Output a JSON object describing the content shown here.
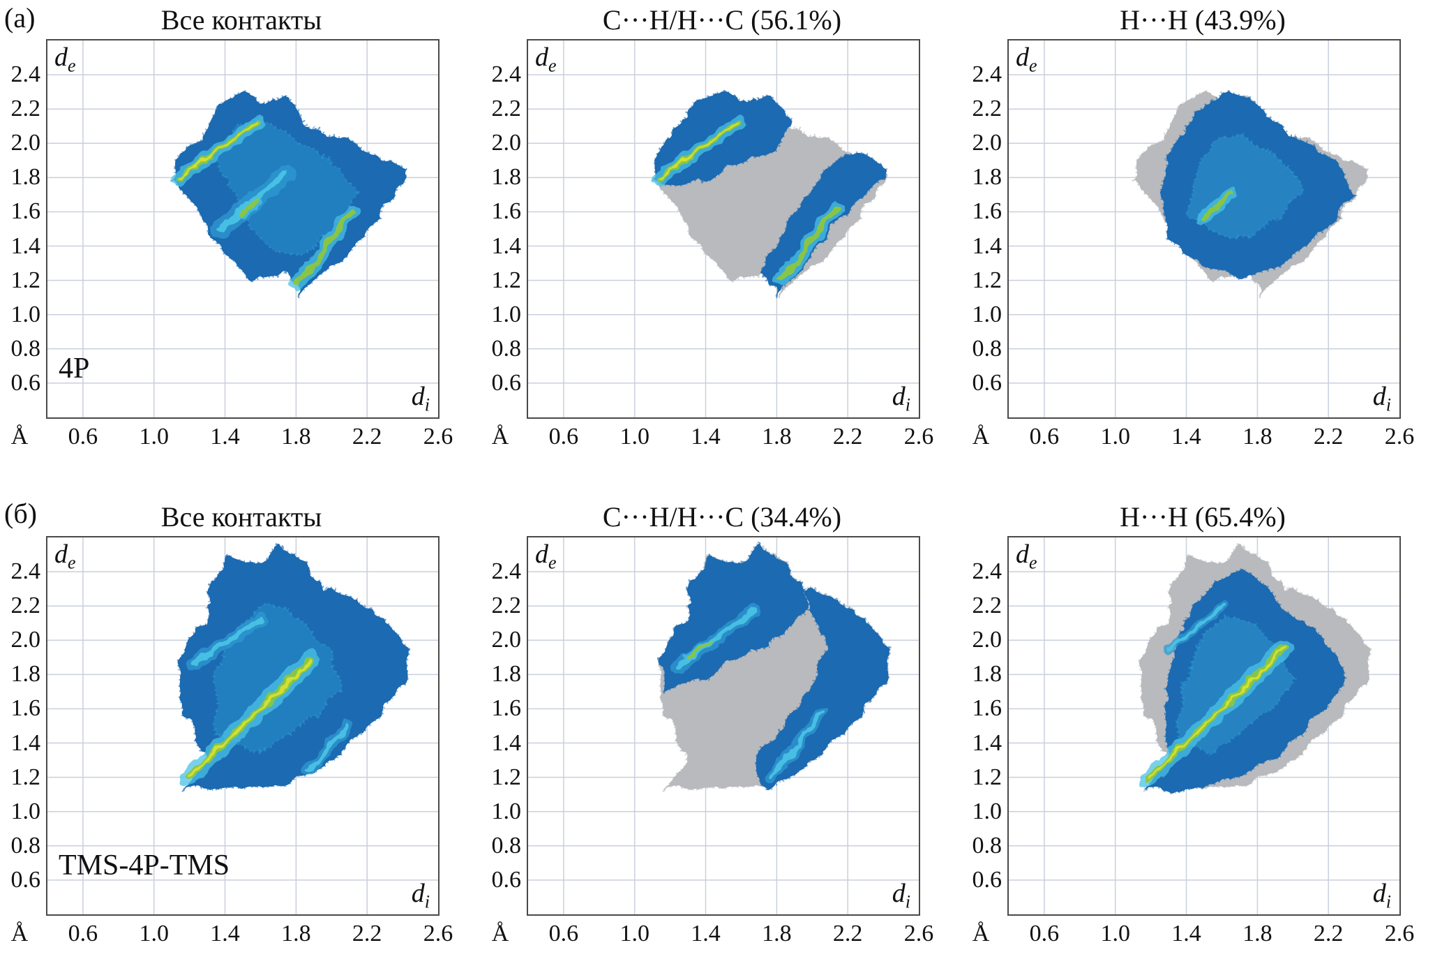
{
  "figure": {
    "row_labels": [
      "(а)",
      "(б)"
    ],
    "colors": {
      "grid": "#c9cfdd",
      "frame": "#4a4a4a",
      "gray": "#b9babd",
      "blue": "#1a6ab1",
      "blue_light": "#2f9ad1",
      "cyan": "#49c2e5",
      "green": "#8cc63e",
      "yellow": "#d7e02f"
    },
    "axis": {
      "unit": "Å",
      "xlabel": "d",
      "xlabel_sub": "i",
      "ylabel": "d",
      "ylabel_sub": "e"
    }
  },
  "shapes": {
    "outline_a": [
      [
        1.28,
        2.02
      ],
      [
        1.35,
        2.22
      ],
      [
        1.5,
        2.3
      ],
      [
        1.62,
        2.22
      ],
      [
        1.75,
        2.28
      ],
      [
        1.85,
        2.1
      ],
      [
        2.0,
        2.05
      ],
      [
        2.1,
        2.02
      ],
      [
        2.2,
        1.95
      ],
      [
        2.42,
        1.85
      ],
      [
        2.35,
        1.68
      ],
      [
        2.2,
        1.5
      ],
      [
        2.1,
        1.35
      ],
      [
        1.95,
        1.25
      ],
      [
        1.82,
        1.12
      ],
      [
        1.75,
        1.25
      ],
      [
        1.55,
        1.2
      ],
      [
        1.45,
        1.3
      ],
      [
        1.35,
        1.42
      ],
      [
        1.28,
        1.55
      ],
      [
        1.18,
        1.7
      ],
      [
        1.1,
        1.78
      ],
      [
        1.15,
        1.95
      ],
      [
        1.22,
        2.0
      ]
    ],
    "inner_a": [
      [
        1.35,
        1.9
      ],
      [
        1.45,
        2.1
      ],
      [
        1.6,
        2.15
      ],
      [
        1.75,
        2.05
      ],
      [
        1.9,
        1.95
      ],
      [
        2.05,
        1.85
      ],
      [
        2.15,
        1.7
      ],
      [
        2.0,
        1.5
      ],
      [
        1.85,
        1.35
      ],
      [
        1.7,
        1.35
      ],
      [
        1.55,
        1.5
      ],
      [
        1.45,
        1.7
      ]
    ],
    "wing_a_upper": [
      [
        1.1,
        1.78
      ],
      [
        1.14,
        1.98
      ],
      [
        1.25,
        2.1
      ],
      [
        1.33,
        2.25
      ],
      [
        1.5,
        2.3
      ],
      [
        1.63,
        2.23
      ],
      [
        1.76,
        2.28
      ],
      [
        1.88,
        2.12
      ],
      [
        1.8,
        1.98
      ],
      [
        1.6,
        1.88
      ],
      [
        1.42,
        1.8
      ],
      [
        1.25,
        1.74
      ]
    ],
    "band_a_lower": [
      [
        1.8,
        1.12
      ],
      [
        1.92,
        1.25
      ],
      [
        2.05,
        1.42
      ],
      [
        2.18,
        1.58
      ],
      [
        2.32,
        1.72
      ],
      [
        2.42,
        1.84
      ],
      [
        2.3,
        1.95
      ],
      [
        2.15,
        1.92
      ],
      [
        2.02,
        1.78
      ],
      [
        1.9,
        1.6
      ],
      [
        1.8,
        1.42
      ],
      [
        1.72,
        1.25
      ]
    ],
    "blob_a_hh": [
      [
        1.3,
        1.45
      ],
      [
        1.26,
        1.7
      ],
      [
        1.3,
        1.95
      ],
      [
        1.4,
        2.1
      ],
      [
        1.5,
        2.22
      ],
      [
        1.62,
        2.3
      ],
      [
        1.76,
        2.26
      ],
      [
        1.88,
        2.12
      ],
      [
        2.0,
        2.05
      ],
      [
        2.12,
        1.98
      ],
      [
        2.25,
        1.88
      ],
      [
        2.35,
        1.7
      ],
      [
        2.2,
        1.52
      ],
      [
        2.05,
        1.38
      ],
      [
        1.9,
        1.28
      ],
      [
        1.72,
        1.22
      ],
      [
        1.52,
        1.28
      ],
      [
        1.4,
        1.35
      ]
    ],
    "inner_a_hh": [
      [
        1.4,
        1.6
      ],
      [
        1.45,
        1.85
      ],
      [
        1.55,
        2.0
      ],
      [
        1.7,
        2.05
      ],
      [
        1.85,
        1.95
      ],
      [
        2.0,
        1.85
      ],
      [
        2.05,
        1.7
      ],
      [
        1.9,
        1.55
      ],
      [
        1.75,
        1.45
      ],
      [
        1.55,
        1.48
      ]
    ],
    "outline_b": [
      [
        1.17,
        1.13
      ],
      [
        1.3,
        1.28
      ],
      [
        1.24,
        1.45
      ],
      [
        1.16,
        1.6
      ],
      [
        1.13,
        1.82
      ],
      [
        1.2,
        2.02
      ],
      [
        1.3,
        2.1
      ],
      [
        1.3,
        2.28
      ],
      [
        1.42,
        2.48
      ],
      [
        1.58,
        2.44
      ],
      [
        1.7,
        2.55
      ],
      [
        1.84,
        2.46
      ],
      [
        1.95,
        2.3
      ],
      [
        2.1,
        2.26
      ],
      [
        2.28,
        2.12
      ],
      [
        2.44,
        1.96
      ],
      [
        2.42,
        1.78
      ],
      [
        2.3,
        1.6
      ],
      [
        2.16,
        1.46
      ],
      [
        2.0,
        1.3
      ],
      [
        1.84,
        1.2
      ],
      [
        1.66,
        1.13
      ],
      [
        1.45,
        1.15
      ]
    ],
    "inner_b": [
      [
        1.35,
        1.45
      ],
      [
        1.35,
        1.8
      ],
      [
        1.45,
        2.05
      ],
      [
        1.6,
        2.2
      ],
      [
        1.75,
        2.2
      ],
      [
        1.9,
        2.05
      ],
      [
        2.0,
        1.9
      ],
      [
        2.05,
        1.7
      ],
      [
        1.9,
        1.55
      ],
      [
        1.75,
        1.45
      ],
      [
        1.6,
        1.35
      ]
    ],
    "wing_b_upper": [
      [
        1.17,
        1.7
      ],
      [
        1.15,
        1.9
      ],
      [
        1.22,
        2.05
      ],
      [
        1.3,
        2.12
      ],
      [
        1.3,
        2.3
      ],
      [
        1.43,
        2.48
      ],
      [
        1.58,
        2.44
      ],
      [
        1.7,
        2.55
      ],
      [
        1.84,
        2.45
      ],
      [
        1.95,
        2.3
      ],
      [
        1.98,
        2.18
      ],
      [
        1.85,
        2.05
      ],
      [
        1.7,
        1.95
      ],
      [
        1.5,
        1.85
      ],
      [
        1.35,
        1.76
      ]
    ],
    "arc_b_right": [
      [
        1.95,
        2.3
      ],
      [
        2.1,
        2.26
      ],
      [
        2.28,
        2.12
      ],
      [
        2.44,
        1.96
      ],
      [
        2.42,
        1.78
      ],
      [
        2.3,
        1.6
      ],
      [
        2.16,
        1.45
      ],
      [
        2.0,
        1.3
      ],
      [
        1.85,
        1.18
      ],
      [
        1.73,
        1.12
      ],
      [
        1.68,
        1.3
      ],
      [
        1.8,
        1.45
      ],
      [
        1.92,
        1.62
      ],
      [
        2.02,
        1.8
      ],
      [
        2.08,
        2.0
      ],
      [
        2.0,
        2.16
      ]
    ],
    "blob_b_hh": [
      [
        1.17,
        1.13
      ],
      [
        1.3,
        1.3
      ],
      [
        1.28,
        1.55
      ],
      [
        1.3,
        1.8
      ],
      [
        1.36,
        2.05
      ],
      [
        1.45,
        2.2
      ],
      [
        1.58,
        2.35
      ],
      [
        1.72,
        2.42
      ],
      [
        1.85,
        2.32
      ],
      [
        1.95,
        2.18
      ],
      [
        2.1,
        2.08
      ],
      [
        2.22,
        1.95
      ],
      [
        2.3,
        1.78
      ],
      [
        2.18,
        1.6
      ],
      [
        2.05,
        1.45
      ],
      [
        1.9,
        1.33
      ],
      [
        1.72,
        1.22
      ],
      [
        1.5,
        1.15
      ],
      [
        1.32,
        1.12
      ]
    ],
    "inner_b_hh": [
      [
        1.35,
        1.4
      ],
      [
        1.38,
        1.75
      ],
      [
        1.48,
        2.0
      ],
      [
        1.62,
        2.15
      ],
      [
        1.78,
        2.1
      ],
      [
        1.92,
        1.95
      ],
      [
        2.0,
        1.78
      ],
      [
        1.88,
        1.6
      ],
      [
        1.72,
        1.48
      ],
      [
        1.55,
        1.35
      ]
    ]
  },
  "chart_data": [
    {
      "type": "heatmap",
      "subtype": "hirshfeld-2d-fingerprint",
      "row": "(а)",
      "title": "Все контакты",
      "contact": "все контакты",
      "percent": null,
      "corner_label": "4P",
      "xlabel": "di",
      "ylabel": "de",
      "unit": "Å",
      "xlim": [
        0.4,
        2.6
      ],
      "ylim": [
        0.4,
        2.6
      ],
      "x_ticks": [
        "0.6",
        "1.0",
        "1.4",
        "1.8",
        "2.2",
        "2.6"
      ],
      "y_ticks": [
        "2.4",
        "2.2",
        "2.0",
        "1.8",
        "1.6",
        "1.4",
        "1.2",
        "1.0",
        "0.8",
        "0.6"
      ],
      "layers": [
        {
          "kind": "poly",
          "color": "blue",
          "pts_ref": "outline_a"
        },
        {
          "kind": "poly",
          "color": "blue_light",
          "opacity": 0.45,
          "pts_ref": "inner_a"
        },
        {
          "kind": "streak",
          "halo": "blue_light",
          "halo_w": 26,
          "core": "cyan",
          "core_w": 9,
          "from": [
            1.38,
            1.5
          ],
          "to": [
            1.74,
            1.82
          ]
        },
        {
          "kind": "streak",
          "halo": "cyan",
          "halo_w": 20,
          "core": "green",
          "core_w": 8,
          "core2": "yellow",
          "core2_w": 3,
          "from": [
            1.13,
            1.79
          ],
          "to": [
            1.58,
            2.12
          ]
        },
        {
          "kind": "streak",
          "halo": "cyan",
          "halo_w": 20,
          "core": "green",
          "core_w": 8,
          "from": [
            1.8,
            1.17
          ],
          "to": [
            2.12,
            1.6
          ]
        },
        {
          "kind": "streak",
          "halo": "cyan",
          "halo_w": 12,
          "core": "green",
          "core_w": 6,
          "from": [
            1.49,
            1.58
          ],
          "to": [
            1.58,
            1.66
          ]
        }
      ]
    },
    {
      "type": "heatmap",
      "subtype": "hirshfeld-2d-fingerprint",
      "row": "(а)",
      "title": "C···H/H···C (56.1%)",
      "contact": "C···H/H···C",
      "percent": 56.1,
      "corner_label": "",
      "xlabel": "di",
      "ylabel": "de",
      "unit": "Å",
      "xlim": [
        0.4,
        2.6
      ],
      "ylim": [
        0.4,
        2.6
      ],
      "x_ticks": [
        "0.6",
        "1.0",
        "1.4",
        "1.8",
        "2.2",
        "2.6"
      ],
      "y_ticks": [
        "2.4",
        "2.2",
        "2.0",
        "1.8",
        "1.6",
        "1.4",
        "1.2",
        "1.0",
        "0.8",
        "0.6"
      ],
      "layers": [
        {
          "kind": "poly",
          "color": "gray",
          "pts_ref": "outline_a"
        },
        {
          "kind": "poly",
          "color": "blue",
          "pts_ref": "wing_a_upper"
        },
        {
          "kind": "streak",
          "halo": "cyan",
          "halo_w": 20,
          "core": "green",
          "core_w": 8,
          "core2": "yellow",
          "core2_w": 3,
          "from": [
            1.13,
            1.79
          ],
          "to": [
            1.58,
            2.12
          ]
        },
        {
          "kind": "poly",
          "color": "blue",
          "pts_ref": "band_a_lower"
        },
        {
          "kind": "streak",
          "halo": "cyan",
          "halo_w": 20,
          "core": "green",
          "core_w": 8,
          "from": [
            1.82,
            1.2
          ],
          "to": [
            2.14,
            1.62
          ]
        }
      ]
    },
    {
      "type": "heatmap",
      "subtype": "hirshfeld-2d-fingerprint",
      "row": "(а)",
      "title": "H···H (43.9%)",
      "contact": "H···H",
      "percent": 43.9,
      "corner_label": "",
      "xlabel": "di",
      "ylabel": "de",
      "unit": "Å",
      "xlim": [
        0.4,
        2.6
      ],
      "ylim": [
        0.4,
        2.6
      ],
      "x_ticks": [
        "0.6",
        "1.0",
        "1.4",
        "1.8",
        "2.2",
        "2.6"
      ],
      "y_ticks": [
        "2.4",
        "2.2",
        "2.0",
        "1.8",
        "1.6",
        "1.4",
        "1.2",
        "1.0",
        "0.8",
        "0.6"
      ],
      "layers": [
        {
          "kind": "poly",
          "color": "gray",
          "pts_ref": "outline_a"
        },
        {
          "kind": "poly",
          "color": "blue",
          "pts_ref": "blob_a_hh"
        },
        {
          "kind": "poly",
          "color": "blue_light",
          "opacity": 0.5,
          "pts_ref": "inner_a_hh"
        },
        {
          "kind": "streak",
          "halo": "cyan",
          "halo_w": 16,
          "core": "green",
          "core_w": 6,
          "from": [
            1.48,
            1.55
          ],
          "to": [
            1.65,
            1.7
          ]
        }
      ]
    },
    {
      "type": "heatmap",
      "subtype": "hirshfeld-2d-fingerprint",
      "row": "(б)",
      "title": "Все контакты",
      "contact": "все контакты",
      "percent": null,
      "corner_label": "TMS-4P-TMS",
      "xlabel": "di",
      "ylabel": "de",
      "unit": "Å",
      "xlim": [
        0.4,
        2.6
      ],
      "ylim": [
        0.4,
        2.6
      ],
      "x_ticks": [
        "0.6",
        "1.0",
        "1.4",
        "1.8",
        "2.2",
        "2.6"
      ],
      "y_ticks": [
        "2.4",
        "2.2",
        "2.0",
        "1.8",
        "1.6",
        "1.4",
        "1.2",
        "1.0",
        "0.8",
        "0.6"
      ],
      "layers": [
        {
          "kind": "poly",
          "color": "blue",
          "pts_ref": "outline_b"
        },
        {
          "kind": "poly",
          "color": "blue_light",
          "opacity": 0.45,
          "pts_ref": "inner_b"
        },
        {
          "kind": "streak",
          "halo": "cyan",
          "halo_w": 26,
          "core": "green",
          "core_w": 10,
          "core2": "yellow",
          "core2_w": 4,
          "from": [
            1.2,
            1.2
          ],
          "to": [
            1.88,
            1.88
          ]
        },
        {
          "kind": "streak",
          "halo": "blue_light",
          "halo_w": 20,
          "core": "cyan",
          "core_w": 8,
          "from": [
            1.22,
            1.86
          ],
          "to": [
            1.6,
            2.12
          ]
        },
        {
          "kind": "streak",
          "halo": "blue_light",
          "halo_w": 16,
          "core": "cyan",
          "core_w": 6,
          "from": [
            1.86,
            1.24
          ],
          "to": [
            2.1,
            1.5
          ]
        }
      ]
    },
    {
      "type": "heatmap",
      "subtype": "hirshfeld-2d-fingerprint",
      "row": "(б)",
      "title": "C···H/H···C (34.4%)",
      "contact": "C···H/H···C",
      "percent": 34.4,
      "corner_label": "",
      "xlabel": "di",
      "ylabel": "de",
      "unit": "Å",
      "xlim": [
        0.4,
        2.6
      ],
      "ylim": [
        0.4,
        2.6
      ],
      "x_ticks": [
        "0.6",
        "1.0",
        "1.4",
        "1.8",
        "2.2",
        "2.6"
      ],
      "y_ticks": [
        "2.4",
        "2.2",
        "2.0",
        "1.8",
        "1.6",
        "1.4",
        "1.2",
        "1.0",
        "0.8",
        "0.6"
      ],
      "layers": [
        {
          "kind": "poly",
          "color": "gray",
          "pts_ref": "outline_b"
        },
        {
          "kind": "poly",
          "color": "blue",
          "pts_ref": "wing_b_upper"
        },
        {
          "kind": "streak",
          "halo": "blue_light",
          "halo_w": 18,
          "core": "cyan",
          "core_w": 7,
          "from": [
            1.24,
            1.84
          ],
          "to": [
            1.68,
            2.18
          ]
        },
        {
          "kind": "streak",
          "halo": "cyan",
          "halo_w": 10,
          "core": "green",
          "core_w": 5,
          "from": [
            1.3,
            1.9
          ],
          "to": [
            1.45,
            2.0
          ]
        },
        {
          "kind": "poly",
          "color": "blue",
          "pts_ref": "arc_b_right"
        },
        {
          "kind": "streak",
          "halo": "blue_light",
          "halo_w": 16,
          "core": "cyan",
          "core_w": 6,
          "from": [
            1.77,
            1.2
          ],
          "to": [
            2.06,
            1.58
          ]
        }
      ]
    },
    {
      "type": "heatmap",
      "subtype": "hirshfeld-2d-fingerprint",
      "row": "(б)",
      "title": "H···H (65.4%)",
      "contact": "H···H",
      "percent": 65.4,
      "corner_label": "",
      "xlabel": "di",
      "ylabel": "de",
      "unit": "Å",
      "xlim": [
        0.4,
        2.6
      ],
      "ylim": [
        0.4,
        2.6
      ],
      "x_ticks": [
        "0.6",
        "1.0",
        "1.4",
        "1.8",
        "2.2",
        "2.6"
      ],
      "y_ticks": [
        "2.4",
        "2.2",
        "2.0",
        "1.8",
        "1.6",
        "1.4",
        "1.2",
        "1.0",
        "0.8",
        "0.6"
      ],
      "layers": [
        {
          "kind": "poly",
          "color": "gray",
          "pts_ref": "outline_b"
        },
        {
          "kind": "poly",
          "color": "blue",
          "pts_ref": "blob_b_hh"
        },
        {
          "kind": "poly",
          "color": "blue_light",
          "opacity": 0.5,
          "pts_ref": "inner_b_hh"
        },
        {
          "kind": "streak",
          "halo": "cyan",
          "halo_w": 24,
          "core": "green",
          "core_w": 9,
          "core2": "yellow",
          "core2_w": 3,
          "from": [
            1.19,
            1.19
          ],
          "to": [
            1.95,
            1.95
          ]
        },
        {
          "kind": "streak",
          "halo": "blue_light",
          "halo_w": 14,
          "core": "cyan",
          "core_w": 6,
          "from": [
            1.3,
            1.95
          ],
          "to": [
            1.6,
            2.2
          ]
        }
      ]
    }
  ]
}
